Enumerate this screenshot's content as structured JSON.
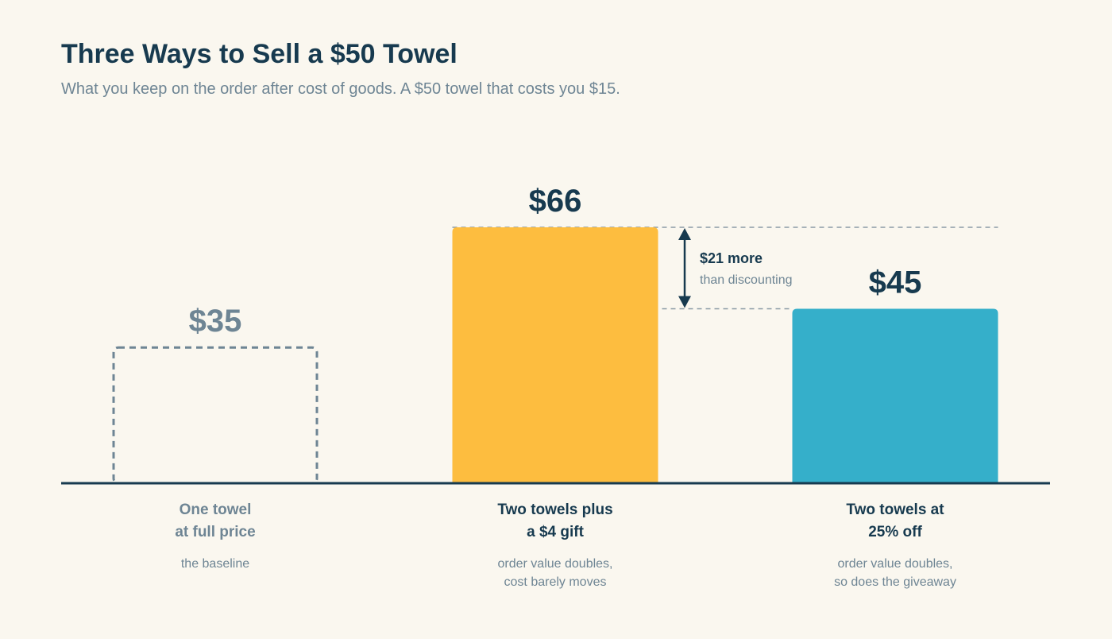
{
  "chart_data": {
    "type": "bar",
    "title": "Three Ways to Sell a $50 Towel",
    "subtitle": "What you keep on the order after cost of goods. A $50 towel that costs you $15.",
    "categories": [
      "One towel\nat full price",
      "Two towels plus\na $4 gift",
      "Two towels at\n25% off"
    ],
    "notes": [
      "the baseline",
      "order value doubles,\ncost barely moves",
      "order value doubles,\nso does the giveaway"
    ],
    "values": [
      35,
      66,
      45
    ],
    "value_labels": [
      "$35",
      "$66",
      "$45"
    ],
    "colors": [
      "#6e8594",
      "#fdbd3f",
      "#35afca"
    ],
    "bar_styles": [
      "dashed",
      "solid",
      "solid"
    ],
    "text_colors": [
      "#6e8594",
      "#173a4f",
      "#173a4f"
    ],
    "annotation": {
      "label": "$21 more",
      "sublabel": "than discounting",
      "from": 1,
      "to": 2
    }
  }
}
